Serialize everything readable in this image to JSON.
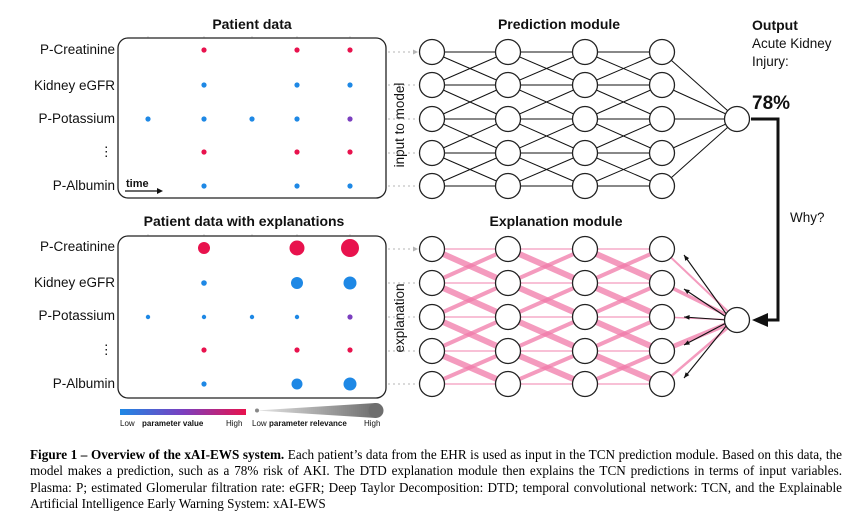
{
  "top_panel": {
    "title": "Patient data",
    "rows": [
      "P-Creatinine",
      "Kidney eGFR",
      "P-Potassium",
      "⋮",
      "P-Albumin"
    ],
    "time_label": "time"
  },
  "bottom_panel": {
    "title": "Patient data with explanations",
    "rows": [
      "P-Creatinine",
      "Kidney eGFR",
      "P-Potassium",
      "⋮",
      "P-Albumin"
    ]
  },
  "prediction_module": {
    "title": "Prediction  module",
    "input_label": "input to model"
  },
  "explanation_module": {
    "title": "Explanation module",
    "side_label": "explanation"
  },
  "output": {
    "title": "Output",
    "line1": "Acute Kidney",
    "line2": "Injury:",
    "value": "78%",
    "why_label": "Why?"
  },
  "legend": {
    "value_low": "Low",
    "value_title": "parameter value",
    "value_high": "High",
    "relevance_low": "Low",
    "relevance_title": "parameter relevance",
    "relevance_high": "High",
    "colors": {
      "low": "#1e88e5",
      "mid": "#7b3fbf",
      "high": "#e8124d"
    }
  },
  "caption": {
    "bold": "Figure 1 – Overview of the xAI-EWS system.",
    "text": " Each patient’s data from the EHR is used as input in the TCN prediction module. Based on this data, the model makes a prediction, such as a 78% risk of AKI. The DTD explanation module then explains the TCN predictions in terms of input variables. Plasma: P; estimated Glomerular filtration rate: eGFR; Deep Taylor Decomposition: DTD; temporal convolutional network: TCN, and the Explainable Artificial Intelligence Early Warning System: xAI-EWS"
  }
}
